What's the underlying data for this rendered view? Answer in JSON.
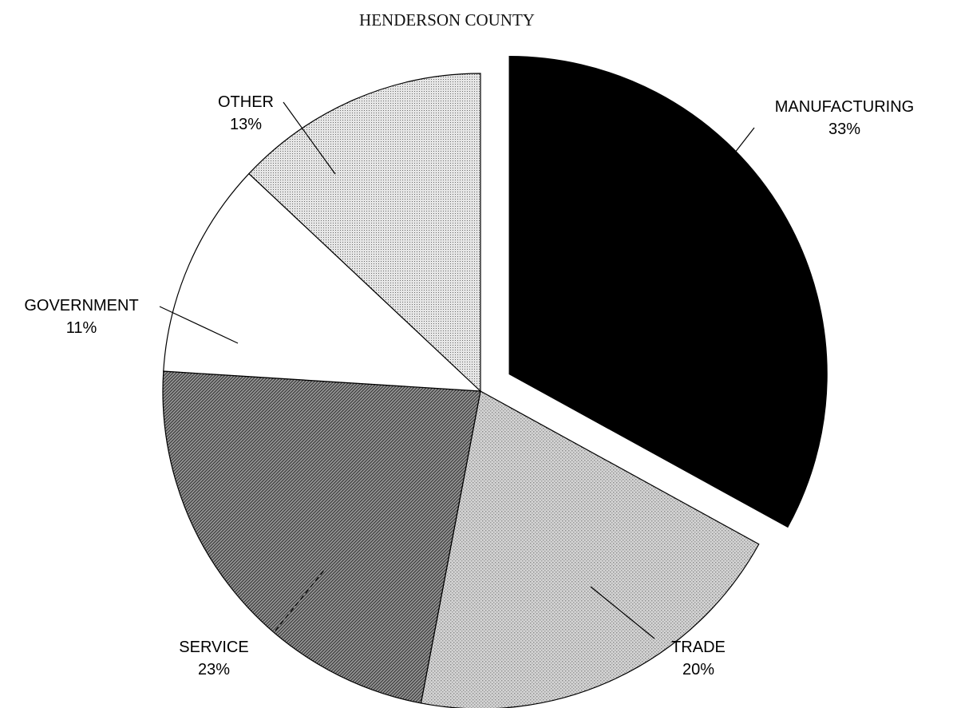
{
  "chart_data": {
    "type": "pie",
    "title": "HENDERSON COUNTY",
    "start_angle_deg": 0,
    "direction": "clockwise",
    "slices": [
      {
        "label": "MANUFACTURING",
        "value": 33,
        "value_label": "33%",
        "pattern": "solid-black",
        "exploded": true
      },
      {
        "label": "TRADE",
        "value": 20,
        "value_label": "20%",
        "pattern": "light-gray-dots",
        "exploded": false
      },
      {
        "label": "SERVICE",
        "value": 23,
        "value_label": "23%",
        "pattern": "dark-diagonal-hatch",
        "exploded": false
      },
      {
        "label": "GOVERNMENT",
        "value": 11,
        "value_label": "11%",
        "pattern": "white",
        "exploded": false
      },
      {
        "label": "OTHER",
        "value": 13,
        "value_label": "13%",
        "pattern": "fine-dots",
        "exploded": false
      }
    ]
  }
}
